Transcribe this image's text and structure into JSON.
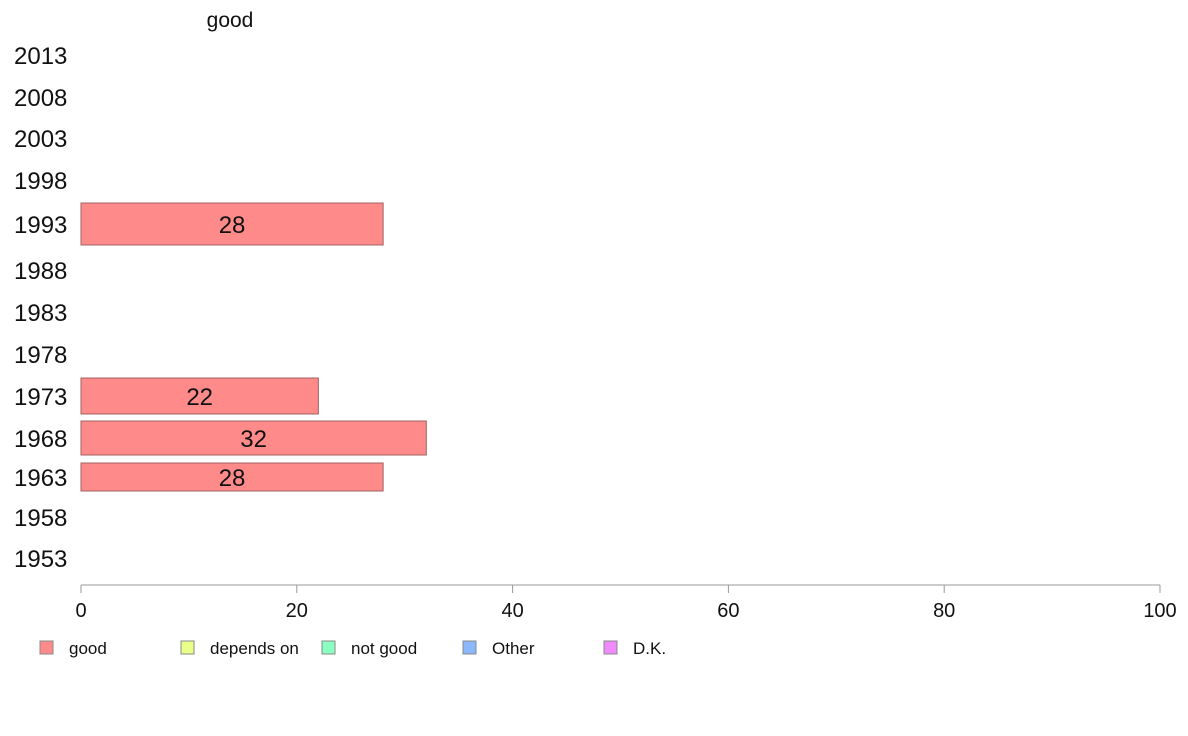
{
  "chart_data": {
    "type": "bar",
    "orientation": "horizontal",
    "title": "good",
    "categories": [
      "2013",
      "2008",
      "2003",
      "1998",
      "1993",
      "1988",
      "1983",
      "1978",
      "1973",
      "1968",
      "1963",
      "1958",
      "1953"
    ],
    "series": [
      {
        "name": "good",
        "values": [
          null,
          null,
          null,
          null,
          28,
          null,
          null,
          null,
          22,
          32,
          28,
          null,
          null
        ]
      }
    ],
    "xlim": [
      0,
      100
    ],
    "xticks": [
      0,
      20,
      40,
      60,
      80,
      100
    ],
    "grid": false,
    "legend": {
      "placement": "bottom",
      "items": [
        {
          "label": "good",
          "color": "#ff8a8a"
        },
        {
          "label": "depends on",
          "color": "#eaff8a"
        },
        {
          "label": "not good",
          "color": "#8affc0"
        },
        {
          "label": "Other",
          "color": "#8ab8ff"
        },
        {
          "label": "D.K.",
          "color": "#f08aff"
        }
      ]
    }
  }
}
